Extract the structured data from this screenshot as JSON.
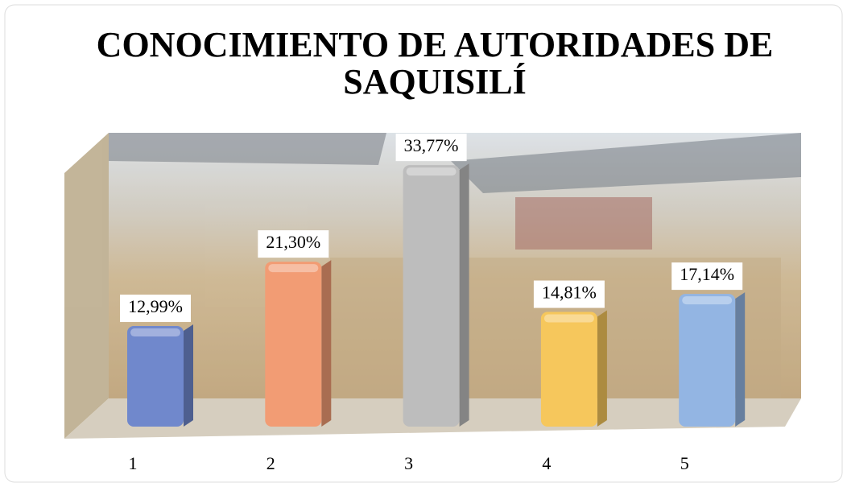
{
  "chart_data": {
    "type": "bar3d",
    "title": "CONOCIMIENTO DE AUTORIDADES DE SAQUISILÍ",
    "categories": [
      "1",
      "2",
      "3",
      "4",
      "5"
    ],
    "values": [
      12.99,
      21.3,
      33.77,
      14.81,
      17.14
    ],
    "value_labels": [
      "12,99%",
      "21,30%",
      "33,77%",
      "14,81%",
      "17,14%"
    ],
    "colors": [
      "#7088cc",
      "#f29c74",
      "#bdbdbd",
      "#f6c75c",
      "#93b5e3"
    ]
  }
}
